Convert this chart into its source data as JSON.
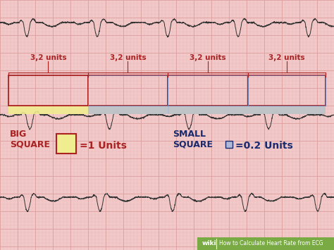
{
  "bg_color": "#f2c8c8",
  "grid_major_color": "#dda0a0",
  "grid_minor_color": "#ebb8b8",
  "ecg_color": "#333333",
  "fig_width": 4.74,
  "fig_height": 3.55,
  "dpi": 100,
  "red_box_color": "#aa2222",
  "yellow_color": "#f0ec90",
  "blue_bar_color": "#b0b8d8",
  "label_color": "#aa2222",
  "dark_blue": "#1a2a6e",
  "unit_labels": [
    "3,2 units",
    "3,2 units",
    "3,2 units",
    "3,2 units"
  ],
  "footer_bg": "#7aaa44",
  "footer_text_wiki": "wiki",
  "footer_text_main": "How to Calculate Heart Rate from ECG"
}
